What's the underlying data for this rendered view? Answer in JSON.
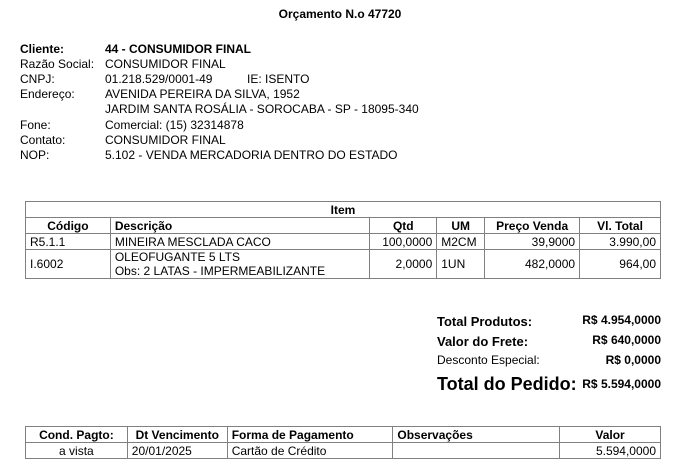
{
  "title": "Orçamento N.o 47720",
  "client": {
    "cliente_label": "Cliente:",
    "cliente": "44 - CONSUMIDOR FINAL",
    "razao_label": "Razão Social:",
    "razao": "CONSUMIDOR FINAL",
    "cnpj_label": "CNPJ:",
    "cnpj": "01.218.529/0001-49",
    "ie": "IE:  ISENTO",
    "endereco_label": "Endereço:",
    "endereco1": "AVENIDA PEREIRA DA SILVA, 1952",
    "endereco2": "JARDIM SANTA ROSÁLIA - SOROCABA - SP - 18095-340",
    "fone_label": "Fone:",
    "fone": "Comercial: (15) 32314878",
    "contato_label": "Contato:",
    "contato": "CONSUMIDOR FINAL",
    "nop_label": "NOP:",
    "nop": "5.102 - VENDA MERCADORIA DENTRO DO ESTADO"
  },
  "items": {
    "caption": "Item",
    "headers": [
      "Código",
      "Descrição",
      "Qtd",
      "UM",
      "Preço Venda",
      "Vl. Total"
    ],
    "rows": [
      {
        "codigo": "R5.1.1",
        "descricao": "MINEIRA MESCLADA CACO",
        "obs": "",
        "qtd": "100,0000",
        "um": "M2CM",
        "preco": "39,9000",
        "total": "3.990,00"
      },
      {
        "codigo": "I.6002",
        "descricao": "OLEOFUGANTE 5 LTS",
        "obs": "Obs: 2 LATAS - IMPERMEABILIZANTE",
        "qtd": "2,0000",
        "um": "1UN",
        "preco": "482,0000",
        "total": "964,00"
      }
    ]
  },
  "totals": {
    "produtos_label": "Total Produtos:",
    "produtos": "R$ 4.954,0000",
    "frete_label": "Valor do Frete:",
    "frete": "R$ 640,0000",
    "desconto_label": "Desconto Especial:",
    "desconto": "R$ 0,0000",
    "pedido_label": "Total do Pedido:",
    "pedido": "R$ 5.594,0000"
  },
  "payment": {
    "headers": [
      "Cond. Pagto:",
      "Dt Vencimento",
      "Forma de Pagamento",
      "Observações",
      "Valor"
    ],
    "row": {
      "cond": "a vista",
      "vencimento": "20/01/2025",
      "forma": "Cartão de Crédito",
      "obs": "",
      "valor": "5.594,0000"
    }
  }
}
